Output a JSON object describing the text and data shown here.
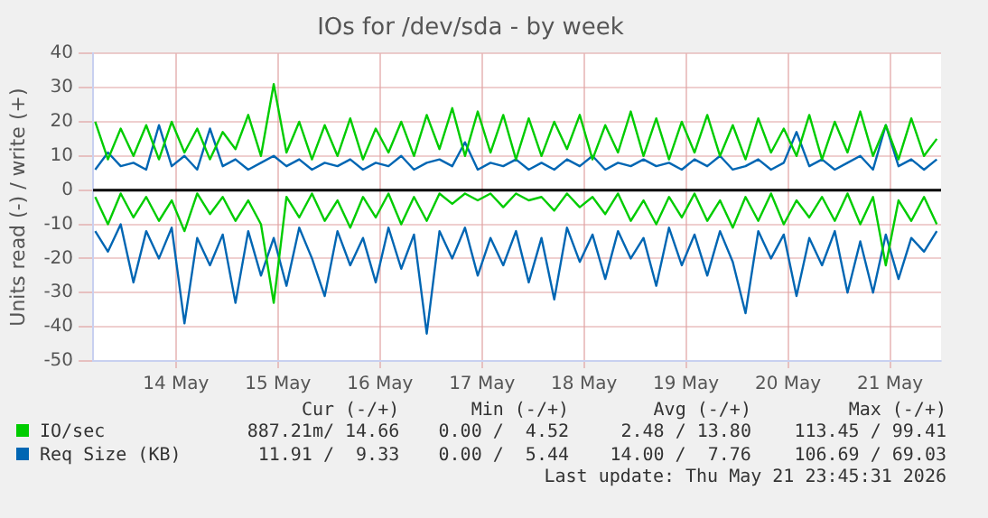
{
  "chart_data": {
    "type": "line",
    "title": "IOs for /dev/sda - by week",
    "ylabel": "Units read (-) / write (+)",
    "x": [
      "2026-05-13T17:00",
      "2026-05-13T20:00",
      "2026-05-13T23:00",
      "2026-05-14T02:00",
      "2026-05-14T05:00",
      "2026-05-14T08:00",
      "2026-05-14T11:00",
      "2026-05-14T14:00",
      "2026-05-14T17:00",
      "2026-05-14T20:00",
      "2026-05-14T23:00",
      "2026-05-15T02:00",
      "2026-05-15T05:00",
      "2026-05-15T08:00",
      "2026-05-15T11:00",
      "2026-05-15T14:00",
      "2026-05-15T17:00",
      "2026-05-15T20:00",
      "2026-05-15T23:00",
      "2026-05-16T02:00",
      "2026-05-16T05:00",
      "2026-05-16T08:00",
      "2026-05-16T11:00",
      "2026-05-16T14:00",
      "2026-05-16T17:00",
      "2026-05-16T20:00",
      "2026-05-16T23:00",
      "2026-05-17T02:00",
      "2026-05-17T05:00",
      "2026-05-17T08:00",
      "2026-05-17T11:00",
      "2026-05-17T14:00",
      "2026-05-17T17:00",
      "2026-05-17T20:00",
      "2026-05-17T23:00",
      "2026-05-18T02:00",
      "2026-05-18T05:00",
      "2026-05-18T08:00",
      "2026-05-18T11:00",
      "2026-05-18T14:00",
      "2026-05-18T17:00",
      "2026-05-18T20:00",
      "2026-05-18T23:00",
      "2026-05-19T02:00",
      "2026-05-19T05:00",
      "2026-05-19T08:00",
      "2026-05-19T11:00",
      "2026-05-19T14:00",
      "2026-05-19T17:00",
      "2026-05-19T20:00",
      "2026-05-19T23:00",
      "2026-05-20T02:00",
      "2026-05-20T05:00",
      "2026-05-20T08:00",
      "2026-05-20T11:00",
      "2026-05-20T14:00",
      "2026-05-20T17:00",
      "2026-05-20T20:00",
      "2026-05-20T23:00",
      "2026-05-21T02:00",
      "2026-05-21T05:00",
      "2026-05-21T08:00",
      "2026-05-21T11:00",
      "2026-05-21T14:00",
      "2026-05-21T17:00",
      "2026-05-21T20:00",
      "2026-05-21T23:00"
    ],
    "series": [
      {
        "name": "IO/sec",
        "color": "#00cc00",
        "values": [
          20,
          9,
          18,
          10,
          19,
          9,
          20,
          11,
          18,
          9,
          17,
          12,
          22,
          10,
          31,
          11,
          20,
          9,
          19,
          10,
          21,
          9,
          18,
          11,
          20,
          10,
          22,
          12,
          24,
          10,
          23,
          11,
          22,
          9,
          21,
          10,
          20,
          12,
          22,
          9,
          19,
          11,
          23,
          10,
          21,
          9,
          20,
          11,
          22,
          10,
          19,
          9,
          21,
          11,
          18,
          10,
          22,
          9,
          20,
          11,
          23,
          10,
          19,
          9,
          21,
          10,
          15
        ]
      },
      {
        "color": "#00cc00",
        "values": [
          -2,
          -10,
          -1,
          -8,
          -2,
          -9,
          -3,
          -12,
          -1,
          -7,
          -2,
          -9,
          -3,
          -10,
          -33,
          -2,
          -8,
          -1,
          -9,
          -3,
          -11,
          -2,
          -8,
          -1,
          -10,
          -2,
          -9,
          -1,
          -4,
          -1,
          -3,
          -1,
          -5,
          -1,
          -3,
          -2,
          -6,
          -1,
          -5,
          -2,
          -7,
          -1,
          -9,
          -3,
          -10,
          -2,
          -8,
          -1,
          -9,
          -3,
          -11,
          -2,
          -9,
          -1,
          -10,
          -3,
          -8,
          -2,
          -9,
          -1,
          -10,
          -2,
          -22,
          -3,
          -9,
          -2,
          -10
        ]
      },
      {
        "name": "Req Size (KB)",
        "color": "#0066b3",
        "values": [
          6,
          11,
          7,
          8,
          6,
          19,
          7,
          10,
          6,
          18,
          7,
          9,
          6,
          8,
          10,
          7,
          9,
          6,
          8,
          7,
          9,
          6,
          8,
          7,
          10,
          6,
          8,
          9,
          7,
          14,
          6,
          8,
          7,
          9,
          6,
          8,
          6,
          9,
          7,
          10,
          6,
          8,
          7,
          9,
          7,
          8,
          6,
          9,
          7,
          10,
          6,
          7,
          9,
          6,
          8,
          17,
          7,
          9,
          6,
          8,
          10,
          6,
          19,
          7,
          9,
          6,
          9
        ]
      },
      {
        "color": "#0066b3",
        "values": [
          -12,
          -18,
          -10,
          -27,
          -12,
          -20,
          -11,
          -39,
          -14,
          -22,
          -13,
          -33,
          -12,
          -25,
          -14,
          -28,
          -11,
          -20,
          -31,
          -12,
          -22,
          -14,
          -27,
          -11,
          -23,
          -13,
          -42,
          -12,
          -20,
          -11,
          -25,
          -14,
          -22,
          -12,
          -27,
          -14,
          -32,
          -11,
          -21,
          -13,
          -26,
          -12,
          -20,
          -14,
          -28,
          -11,
          -22,
          -13,
          -25,
          -12,
          -21,
          -36,
          -12,
          -20,
          -13,
          -31,
          -14,
          -22,
          -12,
          -30,
          -15,
          -30,
          -13,
          -26,
          -14,
          -18,
          -12
        ]
      }
    ],
    "xlim": [
      "2026-05-13T16:30",
      "2026-05-22T00:00"
    ],
    "xticks": [
      {
        "value": "2026-05-14T12:00",
        "label": "14 May"
      },
      {
        "value": "2026-05-15T12:00",
        "label": "15 May"
      },
      {
        "value": "2026-05-16T12:00",
        "label": "16 May"
      },
      {
        "value": "2026-05-17T12:00",
        "label": "17 May"
      },
      {
        "value": "2026-05-18T12:00",
        "label": "18 May"
      },
      {
        "value": "2026-05-19T12:00",
        "label": "19 May"
      },
      {
        "value": "2026-05-20T12:00",
        "label": "20 May"
      },
      {
        "value": "2026-05-21T12:00",
        "label": "21 May"
      }
    ],
    "ylim": [
      -50,
      40
    ],
    "yticks": [
      -50,
      -40,
      -30,
      -20,
      -10,
      0,
      10,
      20,
      30,
      40
    ],
    "ref_lines": [
      {
        "axis": "y",
        "value": 0,
        "color": "#000000"
      }
    ],
    "grid": true,
    "legend": "bottom",
    "marker": "none",
    "line_style": "solid",
    "annotations": [
      "Cur (-/+)",
      "Min (-/+)",
      "Avg (-/+)",
      "Max (-/+)",
      "887.21m/ 14.66",
      "0.00 /  4.52",
      "2.48 / 13.80",
      "113.45 / 99.41",
      "11.91 /  9.33",
      "0.00 /  5.44",
      "14.00 /  7.76",
      "106.69 / 69.03",
      "Last update: Thu May 21 23:45:31 2026"
    ]
  }
}
